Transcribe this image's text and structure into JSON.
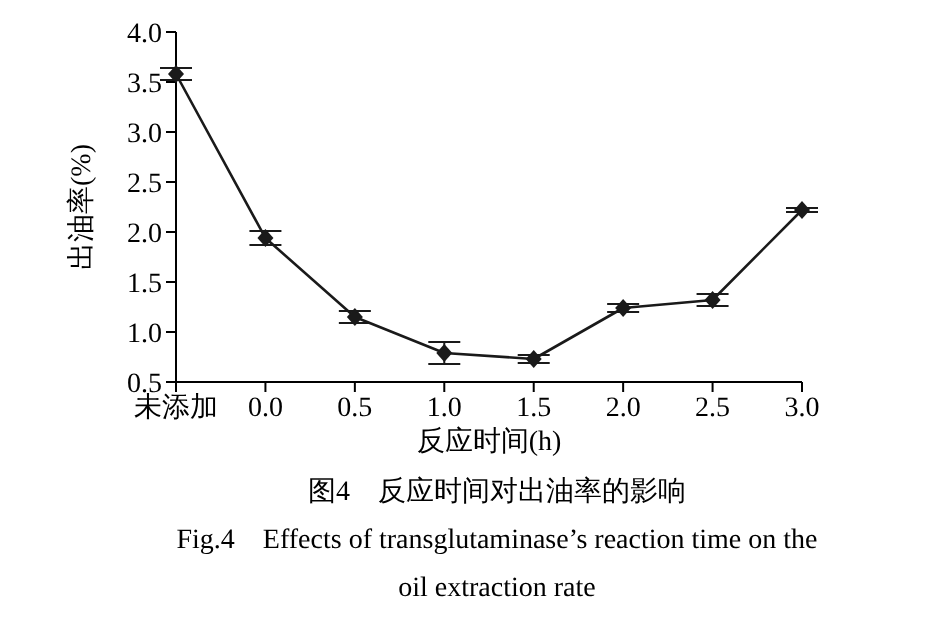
{
  "chart_data": {
    "type": "line",
    "title": "图4　反应时间对出油率的影响",
    "subtitle": "Fig.4　Effects of transglutaminase’s reaction time on the oil extraction rate",
    "xlabel": "反应时间(h)",
    "ylabel": "出油率(%)",
    "categories": [
      "未添加",
      "0.0",
      "0.5",
      "1.0",
      "1.5",
      "2.0",
      "2.5",
      "3.0"
    ],
    "series": [
      {
        "color": "#1a1a1a",
        "values": [
          3.58,
          1.94,
          1.15,
          0.79,
          0.73,
          1.24,
          1.32,
          2.22
        ],
        "errors": [
          0.06,
          0.07,
          0.06,
          0.11,
          0.04,
          0.04,
          0.06,
          0.02
        ]
      }
    ],
    "ylim": [
      0.5,
      4.0
    ],
    "yticks": [
      0.5,
      {
        "value": 1,
        "label": "1.0"
      },
      1.5,
      {
        "value": 2,
        "label": "2.0"
      },
      2.5,
      {
        "value": 3,
        "label": "3.0"
      },
      3.5,
      {
        "value": 4,
        "label": "4.0"
      }
    ],
    "grid": false,
    "marker": "diamond",
    "line_style": "solid"
  }
}
